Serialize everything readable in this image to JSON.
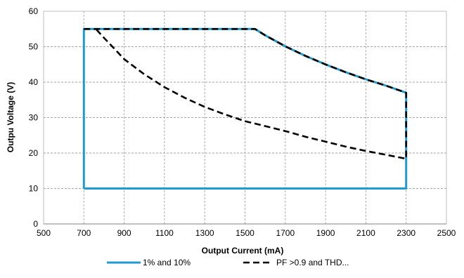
{
  "chart_data": {
    "type": "line",
    "xlabel": "Output Current (mA)",
    "ylabel": "Outpu Voltage (V)",
    "xlim": [
      500,
      2500
    ],
    "ylim": [
      0,
      60
    ],
    "xticks": [
      500,
      700,
      900,
      1100,
      1300,
      1500,
      1700,
      1900,
      2100,
      2300,
      2500
    ],
    "yticks": [
      0,
      10,
      20,
      30,
      40,
      50,
      60
    ],
    "grid": true,
    "legend_position": "bottom",
    "series": [
      {
        "name": "1% and 10%",
        "style": "solid",
        "color": "#1f9bd1",
        "x": [
          700,
          700,
          1550,
          1600,
          1700,
          1800,
          1900,
          2000,
          2100,
          2200,
          2300,
          2300,
          700
        ],
        "y": [
          10,
          55,
          55,
          53.2,
          50.1,
          47.4,
          45.0,
          42.8,
          40.8,
          39.0,
          37.0,
          10,
          10
        ]
      },
      {
        "name": "PF >0.9 and THD...",
        "style": "dashed",
        "color": "#000000",
        "x": [
          700,
          1550,
          1600,
          1700,
          1800,
          1900,
          2000,
          2100,
          2200,
          2300,
          2300,
          2200,
          2100,
          2000,
          1900,
          1800,
          1700,
          1600,
          1500,
          1400,
          1300,
          1200,
          1100,
          1000,
          900,
          850,
          800,
          760
        ],
        "y": [
          55,
          55,
          53.2,
          50.1,
          47.4,
          45.0,
          42.8,
          40.8,
          39.0,
          37.0,
          18.4,
          19.5,
          20.6,
          21.8,
          23.2,
          24.6,
          26.2,
          27.6,
          29.0,
          30.9,
          33.0,
          35.6,
          38.6,
          42.2,
          46.5,
          49.5,
          52.5,
          55
        ]
      }
    ]
  }
}
